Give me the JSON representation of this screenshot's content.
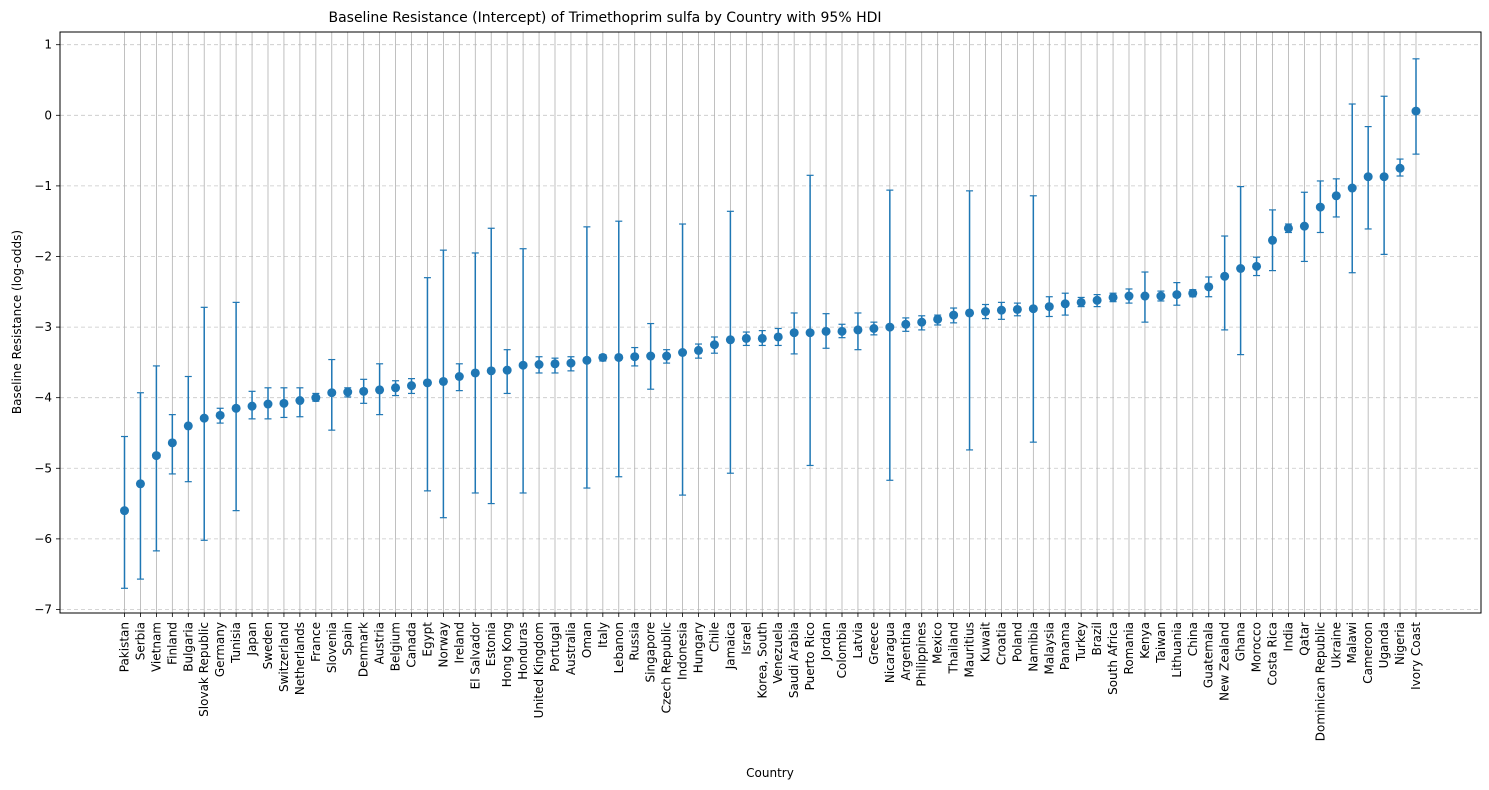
{
  "chart_data": {
    "type": "errorbar",
    "title": "Baseline Resistance (Intercept) of Trimethoprim sulfa by Country with 95% HDI",
    "xlabel": "Country",
    "ylabel": "Baseline Resistance (log-odds)",
    "ylim": [
      -7.05,
      1.18
    ],
    "yticks": [
      -7,
      -6,
      -5,
      -4,
      -3,
      -2,
      -1,
      0,
      1
    ],
    "grid": {
      "x": "solid",
      "y": "dashed"
    },
    "color": "#1f77b4",
    "points": [
      {
        "country": "Pakistan",
        "value": -5.6,
        "lower": -6.7,
        "upper": -4.55
      },
      {
        "country": "Serbia",
        "value": -5.22,
        "lower": -6.57,
        "upper": -3.93
      },
      {
        "country": "Vietnam",
        "value": -4.82,
        "lower": -6.17,
        "upper": -3.55
      },
      {
        "country": "Finland",
        "value": -4.64,
        "lower": -5.08,
        "upper": -4.24
      },
      {
        "country": "Bulgaria",
        "value": -4.4,
        "lower": -5.19,
        "upper": -3.7
      },
      {
        "country": "Slovak Republic",
        "value": -4.29,
        "lower": -6.02,
        "upper": -2.72
      },
      {
        "country": "Germany",
        "value": -4.25,
        "lower": -4.36,
        "upper": -4.15
      },
      {
        "country": "Tunisia",
        "value": -4.15,
        "lower": -5.6,
        "upper": -2.65
      },
      {
        "country": "Japan",
        "value": -4.12,
        "lower": -4.3,
        "upper": -3.91
      },
      {
        "country": "Sweden",
        "value": -4.09,
        "lower": -4.3,
        "upper": -3.86
      },
      {
        "country": "Switzerland",
        "value": -4.08,
        "lower": -4.28,
        "upper": -3.86
      },
      {
        "country": "Netherlands",
        "value": -4.04,
        "lower": -4.27,
        "upper": -3.86
      },
      {
        "country": "France",
        "value": -4.0,
        "lower": -4.05,
        "upper": -3.94
      },
      {
        "country": "Slovenia",
        "value": -3.93,
        "lower": -4.46,
        "upper": -3.46
      },
      {
        "country": "Spain",
        "value": -3.92,
        "lower": -3.99,
        "upper": -3.86
      },
      {
        "country": "Denmark",
        "value": -3.91,
        "lower": -4.08,
        "upper": -3.74
      },
      {
        "country": "Austria",
        "value": -3.89,
        "lower": -4.24,
        "upper": -3.52
      },
      {
        "country": "Belgium",
        "value": -3.86,
        "lower": -3.97,
        "upper": -3.76
      },
      {
        "country": "Canada",
        "value": -3.83,
        "lower": -3.94,
        "upper": -3.73
      },
      {
        "country": "Egypt",
        "value": -3.79,
        "lower": -5.32,
        "upper": -2.3
      },
      {
        "country": "Norway",
        "value": -3.77,
        "lower": -5.7,
        "upper": -1.91
      },
      {
        "country": "Ireland",
        "value": -3.7,
        "lower": -3.9,
        "upper": -3.52
      },
      {
        "country": "El Salvador",
        "value": -3.65,
        "lower": -5.35,
        "upper": -1.95
      },
      {
        "country": "Estonia",
        "value": -3.62,
        "lower": -5.5,
        "upper": -1.6
      },
      {
        "country": "Hong Kong",
        "value": -3.61,
        "lower": -3.94,
        "upper": -3.32
      },
      {
        "country": "Honduras",
        "value": -3.54,
        "lower": -5.35,
        "upper": -1.89
      },
      {
        "country": "United Kingdom",
        "value": -3.53,
        "lower": -3.65,
        "upper": -3.42
      },
      {
        "country": "Portugal",
        "value": -3.52,
        "lower": -3.65,
        "upper": -3.44
      },
      {
        "country": "Australia",
        "value": -3.51,
        "lower": -3.62,
        "upper": -3.42
      },
      {
        "country": "Oman",
        "value": -3.47,
        "lower": -5.28,
        "upper": -1.58
      },
      {
        "country": "Italy",
        "value": -3.43,
        "lower": -3.48,
        "upper": -3.39
      },
      {
        "country": "Lebanon",
        "value": -3.43,
        "lower": -5.12,
        "upper": -1.5
      },
      {
        "country": "Russia",
        "value": -3.42,
        "lower": -3.55,
        "upper": -3.29
      },
      {
        "country": "Singapore",
        "value": -3.41,
        "lower": -3.88,
        "upper": -2.95
      },
      {
        "country": "Czech Republic",
        "value": -3.41,
        "lower": -3.51,
        "upper": -3.32
      },
      {
        "country": "Indonesia",
        "value": -3.36,
        "lower": -5.38,
        "upper": -1.54
      },
      {
        "country": "Hungary",
        "value": -3.33,
        "lower": -3.44,
        "upper": -3.24
      },
      {
        "country": "Chile",
        "value": -3.25,
        "lower": -3.37,
        "upper": -3.14
      },
      {
        "country": "Jamaica",
        "value": -3.18,
        "lower": -5.07,
        "upper": -1.36
      },
      {
        "country": "Israel",
        "value": -3.16,
        "lower": -3.26,
        "upper": -3.07
      },
      {
        "country": "Korea, South",
        "value": -3.16,
        "lower": -3.26,
        "upper": -3.05
      },
      {
        "country": "Venezuela",
        "value": -3.14,
        "lower": -3.26,
        "upper": -3.02
      },
      {
        "country": "Saudi Arabia",
        "value": -3.08,
        "lower": -3.38,
        "upper": -2.8
      },
      {
        "country": "Puerto Rico",
        "value": -3.08,
        "lower": -4.96,
        "upper": -0.85
      },
      {
        "country": "Jordan",
        "value": -3.06,
        "lower": -3.3,
        "upper": -2.81
      },
      {
        "country": "Colombia",
        "value": -3.06,
        "lower": -3.15,
        "upper": -2.96
      },
      {
        "country": "Latvia",
        "value": -3.04,
        "lower": -3.32,
        "upper": -2.8
      },
      {
        "country": "Greece",
        "value": -3.02,
        "lower": -3.11,
        "upper": -2.93
      },
      {
        "country": "Nicaragua",
        "value": -3.0,
        "lower": -5.17,
        "upper": -1.06
      },
      {
        "country": "Argentina",
        "value": -2.96,
        "lower": -3.06,
        "upper": -2.87
      },
      {
        "country": "Philippines",
        "value": -2.93,
        "lower": -3.04,
        "upper": -2.84
      },
      {
        "country": "Mexico",
        "value": -2.89,
        "lower": -2.97,
        "upper": -2.83
      },
      {
        "country": "Thailand",
        "value": -2.83,
        "lower": -2.94,
        "upper": -2.73
      },
      {
        "country": "Mauritius",
        "value": -2.8,
        "lower": -4.74,
        "upper": -1.07
      },
      {
        "country": "Kuwait",
        "value": -2.78,
        "lower": -2.88,
        "upper": -2.68
      },
      {
        "country": "Croatia",
        "value": -2.76,
        "lower": -2.89,
        "upper": -2.65
      },
      {
        "country": "Poland",
        "value": -2.75,
        "lower": -2.84,
        "upper": -2.66
      },
      {
        "country": "Namibia",
        "value": -2.74,
        "lower": -4.63,
        "upper": -1.14
      },
      {
        "country": "Malaysia",
        "value": -2.71,
        "lower": -2.85,
        "upper": -2.57
      },
      {
        "country": "Panama",
        "value": -2.67,
        "lower": -2.83,
        "upper": -2.52
      },
      {
        "country": "Turkey",
        "value": -2.65,
        "lower": -2.71,
        "upper": -2.58
      },
      {
        "country": "Brazil",
        "value": -2.62,
        "lower": -2.71,
        "upper": -2.54
      },
      {
        "country": "South Africa",
        "value": -2.58,
        "lower": -2.64,
        "upper": -2.52
      },
      {
        "country": "Romania",
        "value": -2.56,
        "lower": -2.66,
        "upper": -2.46
      },
      {
        "country": "Kenya",
        "value": -2.56,
        "lower": -2.93,
        "upper": -2.22
      },
      {
        "country": "Taiwan",
        "value": -2.56,
        "lower": -2.63,
        "upper": -2.49
      },
      {
        "country": "Lithuania",
        "value": -2.54,
        "lower": -2.69,
        "upper": -2.37
      },
      {
        "country": "China",
        "value": -2.52,
        "lower": -2.57,
        "upper": -2.47
      },
      {
        "country": "Guatemala",
        "value": -2.43,
        "lower": -2.57,
        "upper": -2.29
      },
      {
        "country": "New Zealand",
        "value": -2.28,
        "lower": -3.04,
        "upper": -1.71
      },
      {
        "country": "Ghana",
        "value": -2.17,
        "lower": -3.39,
        "upper": -1.01
      },
      {
        "country": "Morocco",
        "value": -2.14,
        "lower": -2.27,
        "upper": -2.01
      },
      {
        "country": "Costa Rica",
        "value": -1.77,
        "lower": -2.2,
        "upper": -1.34
      },
      {
        "country": "India",
        "value": -1.6,
        "lower": -1.66,
        "upper": -1.54
      },
      {
        "country": "Qatar",
        "value": -1.57,
        "lower": -2.07,
        "upper": -1.09
      },
      {
        "country": "Dominican Republic",
        "value": -1.3,
        "lower": -1.66,
        "upper": -0.93
      },
      {
        "country": "Ukraine",
        "value": -1.14,
        "lower": -1.44,
        "upper": -0.9
      },
      {
        "country": "Malawi",
        "value": -1.03,
        "lower": -2.23,
        "upper": 0.16
      },
      {
        "country": "Cameroon",
        "value": -0.87,
        "lower": -1.61,
        "upper": -0.16
      },
      {
        "country": "Uganda",
        "value": -0.87,
        "lower": -1.97,
        "upper": 0.27
      },
      {
        "country": "Nigeria",
        "value": -0.75,
        "lower": -0.86,
        "upper": -0.62
      },
      {
        "country": "Ivory Coast",
        "value": 0.06,
        "lower": -0.55,
        "upper": 0.8
      }
    ]
  }
}
